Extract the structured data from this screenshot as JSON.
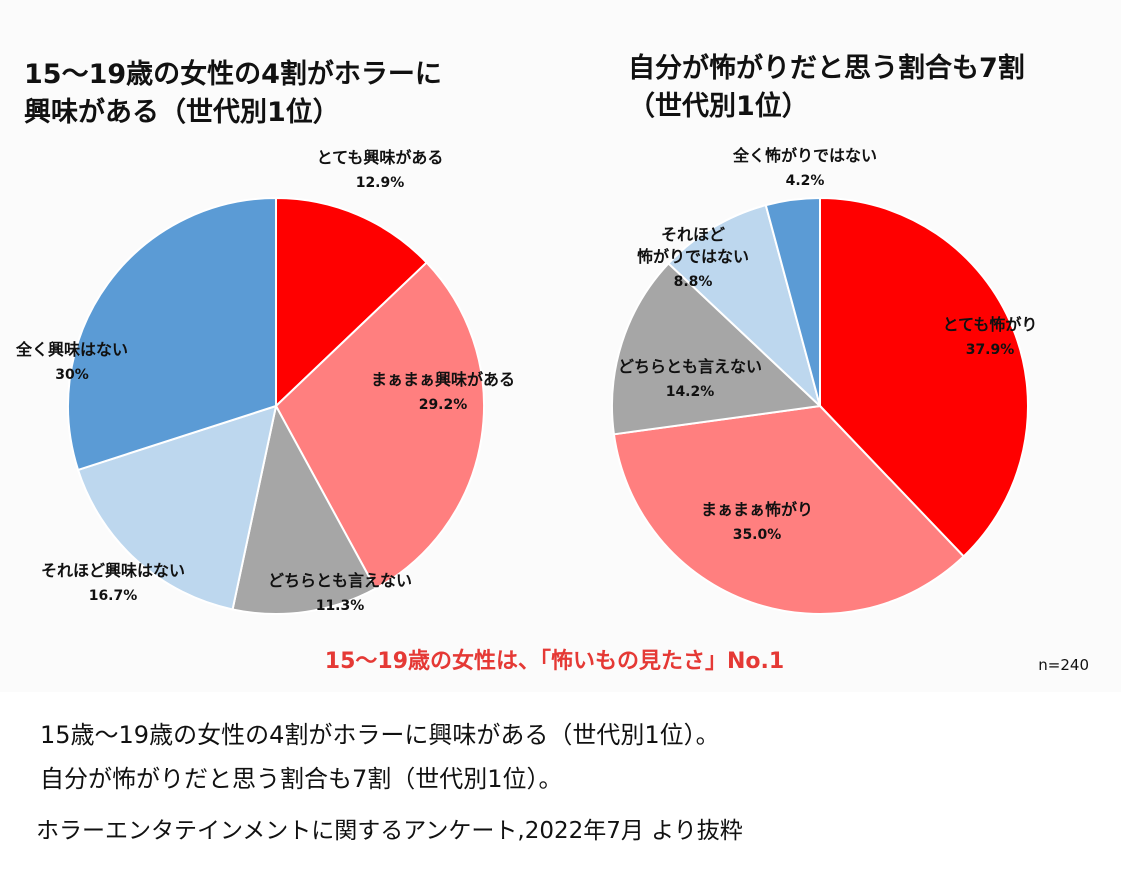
{
  "chart_data": [
    {
      "type": "pie",
      "title": "15〜19歳の女性の4割がホラーに\n興味がある（世代別1位）",
      "start_angle_deg": 0,
      "direction": "clockwise",
      "slices": [
        {
          "label": "とても興味がある",
          "value": 12.9,
          "display": "12.9%",
          "color": "#ff0000"
        },
        {
          "label": "まぁまぁ興味がある",
          "value": 29.2,
          "display": "29.2%",
          "color": "#ff7f7f"
        },
        {
          "label": "どちらとも言えない",
          "value": 11.3,
          "display": "11.3%",
          "color": "#a6a6a6"
        },
        {
          "label": "それほど興味はない",
          "value": 16.7,
          "display": "16.7%",
          "color": "#bdd7ee"
        },
        {
          "label": "全く興味はない",
          "value": 30,
          "display": "30%",
          "color": "#5b9bd5"
        }
      ]
    },
    {
      "type": "pie",
      "title": "自分が怖がりだと思う割合も7割\n（世代別1位）",
      "start_angle_deg": 0,
      "direction": "clockwise",
      "slices": [
        {
          "label": "とても怖がり",
          "value": 37.9,
          "display": "37.9%",
          "color": "#ff0000"
        },
        {
          "label": "まぁまぁ怖がり",
          "value": 35.0,
          "display": "35.0%",
          "color": "#ff7f7f"
        },
        {
          "label": "どちらとも言えない",
          "value": 14.2,
          "display": "14.2%",
          "color": "#a6a6a6"
        },
        {
          "label": "それほど\n怖がりではない",
          "value": 8.8,
          "display": "8.8%",
          "color": "#bdd7ee"
        },
        {
          "label": "全く怖がりではない",
          "value": 4.2,
          "display": "4.2%",
          "color": "#5b9bd5"
        }
      ]
    }
  ],
  "highlight": "15〜19歳の女性は、「怖いもの見たさ」No.1",
  "sample_size": "n=240",
  "captions": [
    "15歳〜19歳の女性の4割がホラーに興味がある（世代別1位）。",
    "自分が怖がりだと思う割合も7割（世代別1位）。",
    "ホラーエンタテインメントに関するアンケート,2022年7月 より抜粋"
  ]
}
